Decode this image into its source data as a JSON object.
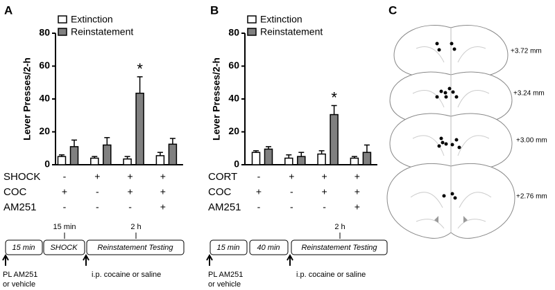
{
  "chart_data": [
    {
      "type": "bar",
      "panel": "A",
      "y_label": "Lever Presses/2-h",
      "categories": [
        null,
        null,
        null,
        null
      ],
      "series": [
        {
          "name": "Extinction",
          "color": "#ffffff",
          "values": [
            5,
            4,
            3.5,
            5.5
          ],
          "errors": [
            1,
            1,
            1.5,
            2
          ]
        },
        {
          "name": "Reinstatement",
          "color": "#808080",
          "values": [
            11,
            12,
            43.5,
            12.5
          ],
          "errors": [
            4,
            4.5,
            10,
            3.5
          ]
        }
      ],
      "annotation": "*",
      "ylim": [
        0,
        80
      ],
      "yticks": [
        0,
        20,
        40,
        60,
        80
      ],
      "conditions": [
        {
          "label": "SHOCK",
          "values": [
            "-",
            "+",
            "+",
            "+"
          ]
        },
        {
          "label": "COC",
          "values": [
            "+",
            "-",
            "+",
            "+"
          ]
        },
        {
          "label": "AM251",
          "values": [
            "-",
            "-",
            "-",
            "+"
          ]
        }
      ]
    },
    {
      "type": "bar",
      "panel": "B",
      "y_label": "Lever Presses/2-h",
      "categories": [
        null,
        null,
        null,
        null
      ],
      "series": [
        {
          "name": "Extinction",
          "color": "#ffffff",
          "values": [
            7.5,
            4,
            6.5,
            4
          ],
          "errors": [
            1,
            2,
            2,
            1
          ]
        },
        {
          "name": "Reinstatement",
          "color": "#808080",
          "values": [
            9.5,
            5,
            30.5,
            7.5
          ],
          "errors": [
            1.5,
            2.5,
            5.5,
            4.5
          ]
        }
      ],
      "annotation": "*",
      "ylim": [
        0,
        80
      ],
      "yticks": [
        0,
        20,
        40,
        60,
        80
      ],
      "conditions": [
        {
          "label": "CORT",
          "values": [
            "-",
            "+",
            "+",
            "+"
          ]
        },
        {
          "label": "COC",
          "values": [
            "+",
            "-",
            "+",
            "+"
          ]
        },
        {
          "label": "AM251",
          "values": [
            "-",
            "-",
            "-",
            "+"
          ]
        }
      ]
    }
  ],
  "timelines": [
    {
      "durations": [
        "15 min",
        "2 h"
      ],
      "boxes": [
        "15 min",
        "SHOCK",
        "Reinstatement Testing"
      ],
      "notes": [
        "PL AM251",
        "or vehicle",
        "i.p. cocaine or saline"
      ]
    },
    {
      "durations": [
        "2 h"
      ],
      "boxes": [
        "15 min",
        "40 min",
        "Reinstatement Testing"
      ],
      "notes": [
        "PL AM251",
        "or vehicle",
        "i.p. cocaine or saline"
      ]
    }
  ],
  "panel_c": {
    "label": "C",
    "sections": [
      "+3.72 mm",
      "+3.24 mm",
      "+3.00 mm",
      "+2.76 mm"
    ]
  }
}
